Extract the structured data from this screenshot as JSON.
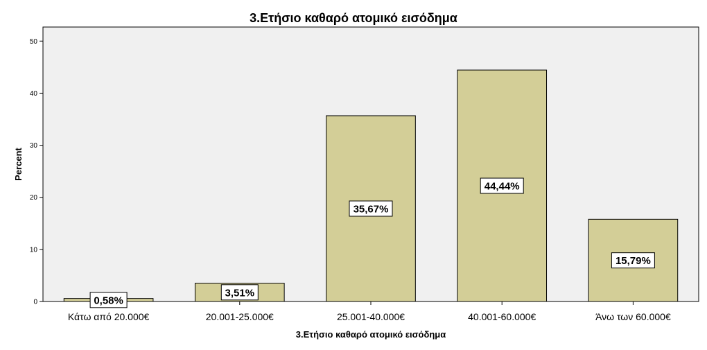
{
  "colors": {
    "plot_background": "#f0f0f0",
    "bar_fill": "#d3ce97",
    "bar_stroke": "#000000",
    "label_box": "#ffffff"
  },
  "chart_data": {
    "type": "bar",
    "title": "3.Ετήσιο καθαρό ατομικό εισόδημα",
    "xlabel": "3.Ετήσιο καθαρό ατομικό εισόδημα",
    "ylabel": "Percent",
    "ylim": [
      0,
      52.7
    ],
    "yticks": [
      0,
      10,
      20,
      30,
      40,
      50
    ],
    "grid": false,
    "categories": [
      "Κάτω από 20.000€",
      "20.001-25.000€",
      "25.001-40.000€",
      "40.001-60.000€",
      "Άνω των 60.000€"
    ],
    "values": [
      0.58,
      3.51,
      35.67,
      44.44,
      15.79
    ],
    "data_labels": [
      "0,58%",
      "3,51%",
      "35,67%",
      "44,44%",
      "15,79%"
    ]
  }
}
